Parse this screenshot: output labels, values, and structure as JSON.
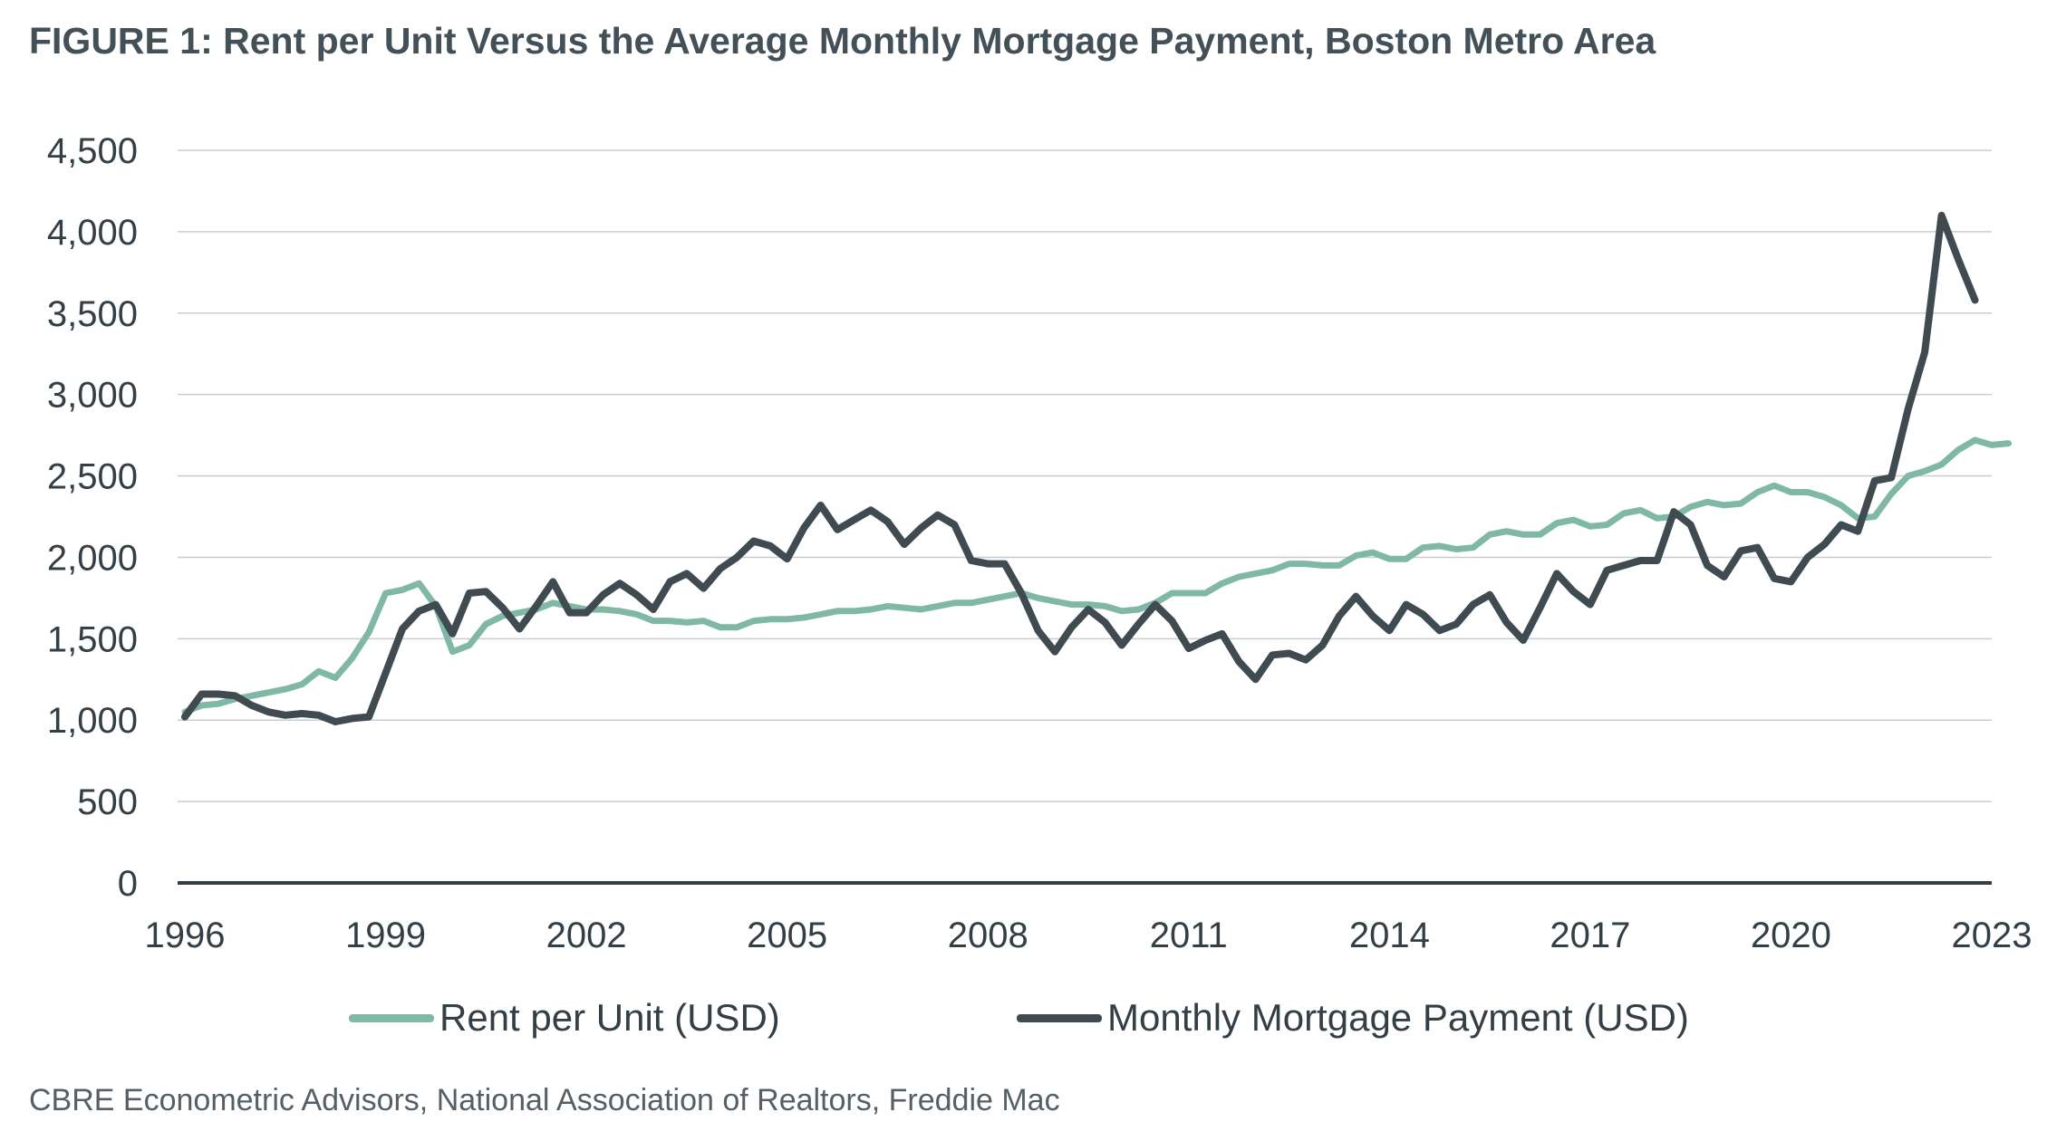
{
  "chart_data": {
    "type": "line",
    "title": "FIGURE 1: Rent per Unit Versus the Average Monthly Mortgage Payment, Boston Metro Area",
    "source": "CBRE Econometric Advisors, National Association of Realtors, Freddie Mac",
    "xlabel": "",
    "ylabel": "",
    "ylim": [
      0,
      4500
    ],
    "xlim": [
      1996,
      2023
    ],
    "y_ticks": [
      "0",
      "500",
      "1,000",
      "1,500",
      "2,000",
      "2,500",
      "3,000",
      "3,500",
      "4,000",
      "4,500"
    ],
    "x_ticks": [
      "1996",
      "1999",
      "2002",
      "2005",
      "2008",
      "2011",
      "2014",
      "2017",
      "2020",
      "2023"
    ],
    "grid": "horizontal",
    "legend_position": "bottom",
    "series": [
      {
        "name": "Rent per Unit (USD)",
        "color": "#7fb8a4",
        "points": [
          [
            1996.0,
            1050
          ],
          [
            1996.25,
            1090
          ],
          [
            1996.5,
            1100
          ],
          [
            1996.75,
            1130
          ],
          [
            1997.0,
            1150
          ],
          [
            1997.25,
            1170
          ],
          [
            1997.5,
            1190
          ],
          [
            1997.75,
            1220
          ],
          [
            1998.0,
            1300
          ],
          [
            1998.25,
            1260
          ],
          [
            1998.5,
            1380
          ],
          [
            1998.75,
            1540
          ],
          [
            1999.0,
            1780
          ],
          [
            1999.25,
            1800
          ],
          [
            1999.5,
            1840
          ],
          [
            1999.75,
            1700
          ],
          [
            2000.0,
            1420
          ],
          [
            2000.25,
            1460
          ],
          [
            2000.5,
            1590
          ],
          [
            2000.75,
            1640
          ],
          [
            2001.0,
            1660
          ],
          [
            2001.25,
            1680
          ],
          [
            2001.5,
            1720
          ],
          [
            2001.75,
            1700
          ],
          [
            2002.0,
            1680
          ],
          [
            2002.25,
            1680
          ],
          [
            2002.5,
            1670
          ],
          [
            2002.75,
            1650
          ],
          [
            2003.0,
            1610
          ],
          [
            2003.25,
            1610
          ],
          [
            2003.5,
            1600
          ],
          [
            2003.75,
            1610
          ],
          [
            2004.0,
            1570
          ],
          [
            2004.25,
            1570
          ],
          [
            2004.5,
            1610
          ],
          [
            2004.75,
            1620
          ],
          [
            2005.0,
            1620
          ],
          [
            2005.25,
            1630
          ],
          [
            2005.5,
            1650
          ],
          [
            2005.75,
            1670
          ],
          [
            2006.0,
            1670
          ],
          [
            2006.25,
            1680
          ],
          [
            2006.5,
            1700
          ],
          [
            2006.75,
            1690
          ],
          [
            2007.0,
            1680
          ],
          [
            2007.25,
            1700
          ],
          [
            2007.5,
            1720
          ],
          [
            2007.75,
            1720
          ],
          [
            2008.0,
            1740
          ],
          [
            2008.25,
            1760
          ],
          [
            2008.5,
            1780
          ],
          [
            2008.75,
            1750
          ],
          [
            2009.0,
            1730
          ],
          [
            2009.25,
            1710
          ],
          [
            2009.5,
            1710
          ],
          [
            2009.75,
            1700
          ],
          [
            2010.0,
            1670
          ],
          [
            2010.25,
            1680
          ],
          [
            2010.5,
            1720
          ],
          [
            2010.75,
            1780
          ],
          [
            2011.0,
            1780
          ],
          [
            2011.25,
            1780
          ],
          [
            2011.5,
            1840
          ],
          [
            2011.75,
            1880
          ],
          [
            2012.0,
            1900
          ],
          [
            2012.25,
            1920
          ],
          [
            2012.5,
            1960
          ],
          [
            2012.75,
            1960
          ],
          [
            2013.0,
            1950
          ],
          [
            2013.25,
            1950
          ],
          [
            2013.5,
            2010
          ],
          [
            2013.75,
            2030
          ],
          [
            2014.0,
            1990
          ],
          [
            2014.25,
            1990
          ],
          [
            2014.5,
            2060
          ],
          [
            2014.75,
            2070
          ],
          [
            2015.0,
            2050
          ],
          [
            2015.25,
            2060
          ],
          [
            2015.5,
            2140
          ],
          [
            2015.75,
            2160
          ],
          [
            2016.0,
            2140
          ],
          [
            2016.25,
            2140
          ],
          [
            2016.5,
            2210
          ],
          [
            2016.75,
            2230
          ],
          [
            2017.0,
            2190
          ],
          [
            2017.25,
            2200
          ],
          [
            2017.5,
            2270
          ],
          [
            2017.75,
            2290
          ],
          [
            2018.0,
            2240
          ],
          [
            2018.25,
            2250
          ],
          [
            2018.5,
            2310
          ],
          [
            2018.75,
            2340
          ],
          [
            2019.0,
            2320
          ],
          [
            2019.25,
            2330
          ],
          [
            2019.5,
            2400
          ],
          [
            2019.75,
            2440
          ],
          [
            2020.0,
            2400
          ],
          [
            2020.25,
            2400
          ],
          [
            2020.5,
            2370
          ],
          [
            2020.75,
            2320
          ],
          [
            2021.0,
            2240
          ],
          [
            2021.25,
            2250
          ],
          [
            2021.5,
            2390
          ],
          [
            2021.75,
            2500
          ],
          [
            2022.0,
            2530
          ],
          [
            2022.25,
            2570
          ],
          [
            2022.5,
            2660
          ],
          [
            2022.75,
            2720
          ],
          [
            2023.0,
            2690
          ],
          [
            2023.25,
            2700
          ]
        ]
      },
      {
        "name": "Monthly Mortgage Payment (USD)",
        "color": "#3f4b51",
        "points": [
          [
            1996.0,
            1020
          ],
          [
            1996.25,
            1160
          ],
          [
            1996.5,
            1160
          ],
          [
            1996.75,
            1150
          ],
          [
            1997.0,
            1090
          ],
          [
            1997.25,
            1050
          ],
          [
            1997.5,
            1030
          ],
          [
            1997.75,
            1040
          ],
          [
            1998.0,
            1030
          ],
          [
            1998.25,
            990
          ],
          [
            1998.5,
            1010
          ],
          [
            1998.75,
            1020
          ],
          [
            1999.0,
            1290
          ],
          [
            1999.25,
            1560
          ],
          [
            1999.5,
            1670
          ],
          [
            1999.75,
            1710
          ],
          [
            2000.0,
            1530
          ],
          [
            2000.25,
            1780
          ],
          [
            2000.5,
            1790
          ],
          [
            2000.75,
            1690
          ],
          [
            2001.0,
            1560
          ],
          [
            2001.25,
            1700
          ],
          [
            2001.5,
            1850
          ],
          [
            2001.75,
            1660
          ],
          [
            2002.0,
            1660
          ],
          [
            2002.25,
            1770
          ],
          [
            2002.5,
            1840
          ],
          [
            2002.75,
            1770
          ],
          [
            2003.0,
            1680
          ],
          [
            2003.25,
            1850
          ],
          [
            2003.5,
            1900
          ],
          [
            2003.75,
            1810
          ],
          [
            2004.0,
            1930
          ],
          [
            2004.25,
            2000
          ],
          [
            2004.5,
            2100
          ],
          [
            2004.75,
            2070
          ],
          [
            2005.0,
            1990
          ],
          [
            2005.25,
            2180
          ],
          [
            2005.5,
            2320
          ],
          [
            2005.75,
            2170
          ],
          [
            2006.0,
            2230
          ],
          [
            2006.25,
            2290
          ],
          [
            2006.5,
            2220
          ],
          [
            2006.75,
            2080
          ],
          [
            2007.0,
            2180
          ],
          [
            2007.25,
            2260
          ],
          [
            2007.5,
            2200
          ],
          [
            2007.75,
            1980
          ],
          [
            2008.0,
            1960
          ],
          [
            2008.25,
            1960
          ],
          [
            2008.5,
            1780
          ],
          [
            2008.75,
            1550
          ],
          [
            2009.0,
            1420
          ],
          [
            2009.25,
            1570
          ],
          [
            2009.5,
            1680
          ],
          [
            2009.75,
            1600
          ],
          [
            2010.0,
            1460
          ],
          [
            2010.25,
            1590
          ],
          [
            2010.5,
            1710
          ],
          [
            2010.75,
            1610
          ],
          [
            2011.0,
            1440
          ],
          [
            2011.25,
            1490
          ],
          [
            2011.5,
            1530
          ],
          [
            2011.75,
            1360
          ],
          [
            2012.0,
            1250
          ],
          [
            2012.25,
            1400
          ],
          [
            2012.5,
            1410
          ],
          [
            2012.75,
            1370
          ],
          [
            2013.0,
            1460
          ],
          [
            2013.25,
            1640
          ],
          [
            2013.5,
            1760
          ],
          [
            2013.75,
            1640
          ],
          [
            2014.0,
            1550
          ],
          [
            2014.25,
            1710
          ],
          [
            2014.5,
            1650
          ],
          [
            2014.75,
            1550
          ],
          [
            2015.0,
            1590
          ],
          [
            2015.25,
            1710
          ],
          [
            2015.5,
            1770
          ],
          [
            2015.75,
            1600
          ],
          [
            2016.0,
            1490
          ],
          [
            2016.25,
            1690
          ],
          [
            2016.5,
            1900
          ],
          [
            2016.75,
            1790
          ],
          [
            2017.0,
            1710
          ],
          [
            2017.25,
            1920
          ],
          [
            2017.5,
            1950
          ],
          [
            2017.75,
            1980
          ],
          [
            2018.0,
            1980
          ],
          [
            2018.25,
            2280
          ],
          [
            2018.5,
            2200
          ],
          [
            2018.75,
            1950
          ],
          [
            2019.0,
            1880
          ],
          [
            2019.25,
            2040
          ],
          [
            2019.5,
            2060
          ],
          [
            2019.75,
            1870
          ],
          [
            2020.0,
            1850
          ],
          [
            2020.25,
            2000
          ],
          [
            2020.5,
            2080
          ],
          [
            2020.75,
            2200
          ],
          [
            2021.0,
            2160
          ],
          [
            2021.25,
            2470
          ],
          [
            2021.5,
            2490
          ],
          [
            2021.75,
            2910
          ],
          [
            2022.0,
            3260
          ],
          [
            2022.25,
            4100
          ],
          [
            2022.5,
            3830
          ],
          [
            2022.75,
            3580
          ]
        ]
      }
    ]
  }
}
